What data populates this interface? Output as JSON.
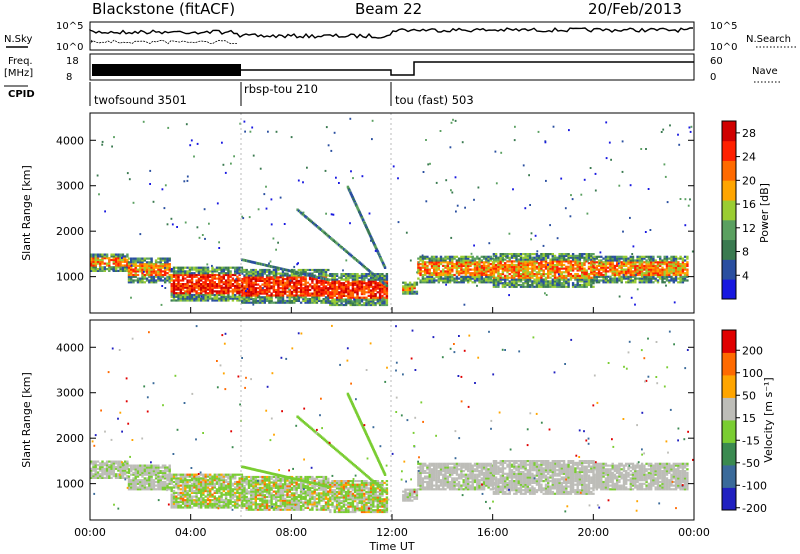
{
  "header": {
    "site": "Blackstone (fitACF)",
    "beam": "Beam 22",
    "date": "20/Feb/2013"
  },
  "status_panels": {
    "nsky_label": "N.Sky",
    "nsearch_label": "N.Search",
    "nsky_ticks": [
      "10^5",
      "10^0"
    ],
    "freq_label_1": "Freq.",
    "freq_label_2": "[MHz]",
    "freq_ticks": [
      "18",
      "8"
    ],
    "nave_label": "Nave",
    "nave_ticks": [
      "60",
      "0"
    ],
    "cpid_label": "CPID",
    "cpid_segments": [
      {
        "name": "twofsound 3501",
        "start_h": 0
      },
      {
        "name": "rbsp-tou 210",
        "start_h": 6
      },
      {
        "name": "tou (fast) 503",
        "start_h": 12
      }
    ]
  },
  "chart_data": [
    {
      "type": "heatmap",
      "title": "",
      "ylabel": "Slant Range [km]",
      "xlim_hours": [
        0,
        24
      ],
      "ylim": [
        200,
        4600
      ],
      "yticks": [
        "1000",
        "2000",
        "3000",
        "4000"
      ],
      "colorbar": {
        "label": "Power [dB]",
        "ticks": [
          "4",
          "8",
          "12",
          "16",
          "20",
          "24",
          "28"
        ],
        "range": [
          0,
          30
        ]
      }
    },
    {
      "type": "heatmap",
      "title": "",
      "ylabel": "Slant Range [km]",
      "xlim_hours": [
        0,
        24
      ],
      "ylim": [
        200,
        4600
      ],
      "yticks": [
        "1000",
        "2000",
        "3000",
        "4000"
      ],
      "colorbar": {
        "label": "Velocity [m s⁻¹]",
        "ticks": [
          "200",
          "100",
          "50",
          "15",
          "-15",
          "-50",
          "-100",
          "-200"
        ]
      }
    }
  ],
  "time_axis": {
    "label": "Time UT",
    "ticks": [
      "00:00",
      "04:00",
      "08:00",
      "12:00",
      "16:00",
      "20:00",
      "00:00"
    ]
  },
  "colors": {
    "power_scale": [
      "#1818e0",
      "#2a4fa0",
      "#3a7a50",
      "#5aa060",
      "#9acd32",
      "#ffa500",
      "#ff6a00",
      "#ff2000",
      "#d00000"
    ],
    "velocity_scale": [
      "#2020c0",
      "#3a6a9a",
      "#3a8a50",
      "#7acd32",
      "#bdbdb8",
      "#ffa500",
      "#ff6a00",
      "#e00000"
    ]
  }
}
